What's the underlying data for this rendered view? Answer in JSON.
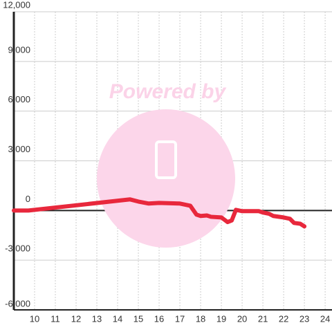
{
  "chart_data": {
    "type": "line",
    "watermark": "Powered by",
    "x": [
      9,
      9.7,
      14.6,
      15,
      15.5,
      16,
      17,
      17.5,
      17.8,
      18,
      18.3,
      18.5,
      19,
      19.3,
      19.5,
      19.7,
      20,
      20.8,
      21,
      21.3,
      21.5,
      22,
      22.3,
      22.5,
      22.8,
      23
    ],
    "series": [
      {
        "color": "#e8283c",
        "values": [
          0,
          0,
          670,
          540,
          420,
          460,
          420,
          290,
          -250,
          -330,
          -300,
          -380,
          -420,
          -700,
          -600,
          40,
          -40,
          -40,
          -120,
          -200,
          -330,
          -420,
          -500,
          -750,
          -800,
          -960
        ]
      }
    ],
    "xlim": [
      9,
      24.33
    ],
    "xticks": [
      10,
      11,
      12,
      13,
      14,
      15,
      16,
      17,
      18,
      19,
      20,
      21,
      22,
      23,
      24
    ],
    "ylim": [
      -6000,
      12000
    ],
    "yticks": [
      {
        "value": -6000,
        "label": "-6,000"
      },
      {
        "value": -3000,
        "label": "-3,000"
      },
      0,
      {
        "value": 3000,
        "label": "3,000"
      },
      {
        "value": 6000,
        "label": "6,000"
      },
      {
        "value": 9000,
        "label": "9,000"
      },
      {
        "value": 12000,
        "label": "12,000"
      }
    ],
    "grid": true
  }
}
